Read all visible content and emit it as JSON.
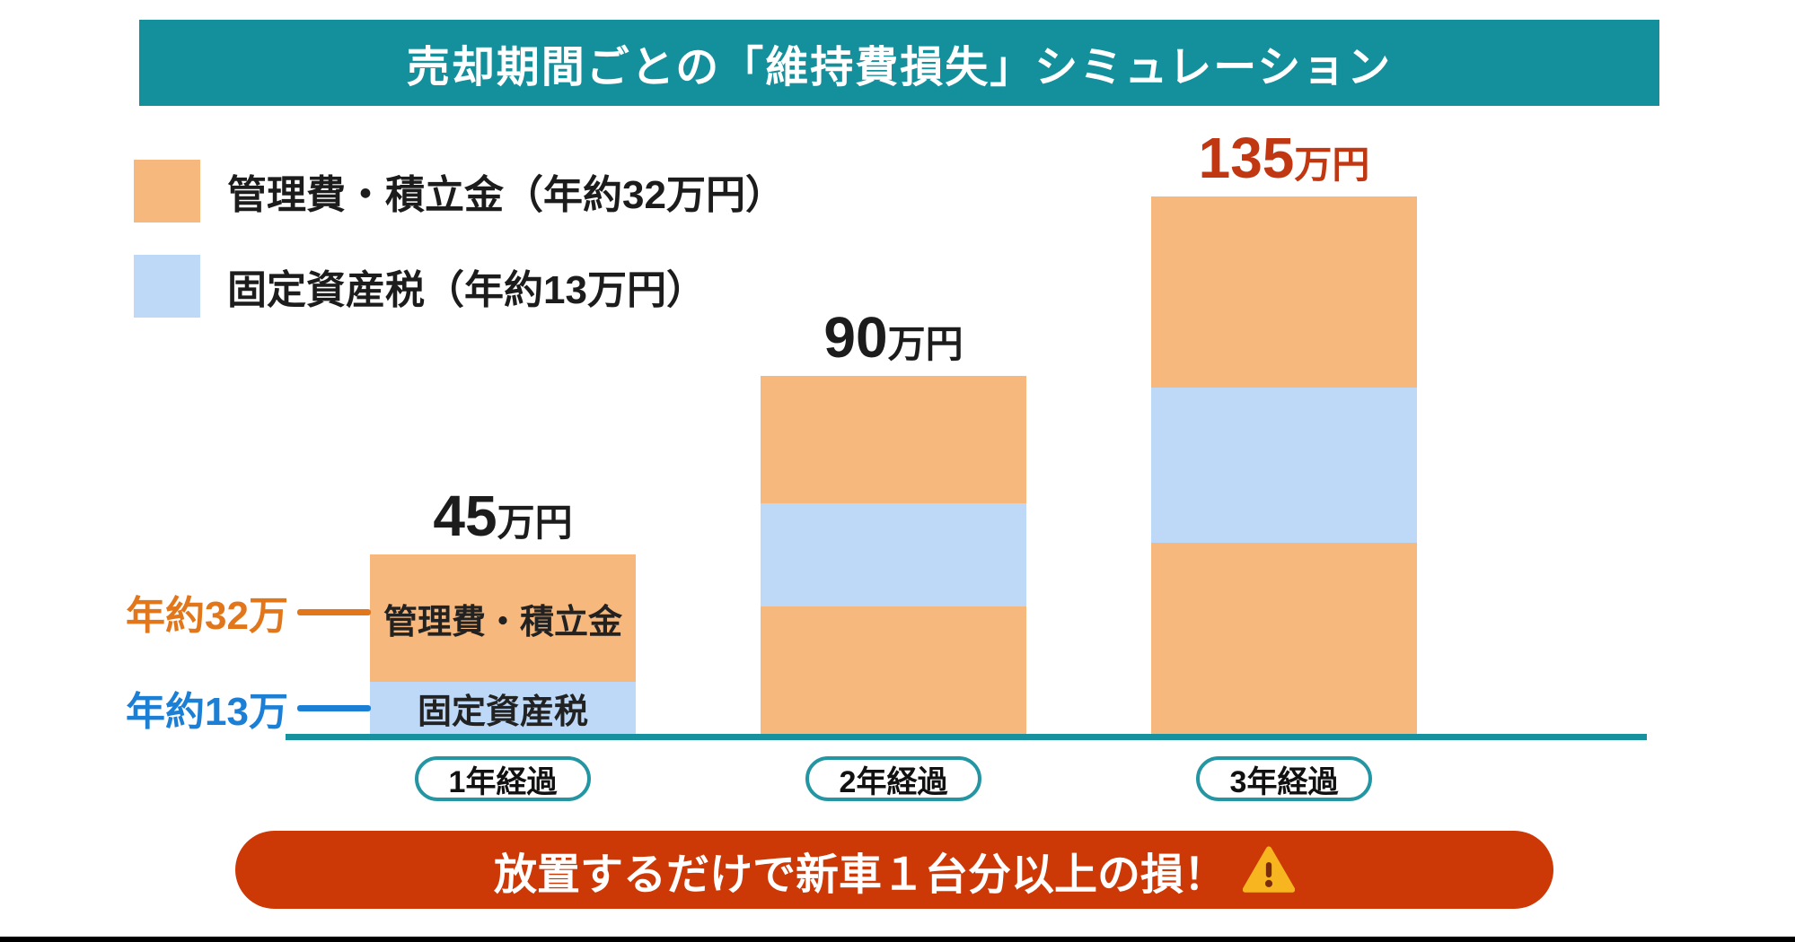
{
  "header": {
    "title": "売却期間ごとの「維持費損失」シミュレーション"
  },
  "legend": {
    "items": [
      {
        "label": "管理費・積立金（年約32万円）",
        "color": "#F6B87D"
      },
      {
        "label": "固定資産税（年約13万円）",
        "color": "#BDD9F7"
      }
    ]
  },
  "chart_data": {
    "type": "bar",
    "stacked": true,
    "unit": "万円",
    "title": "売却期間ごとの「維持費損失」シミュレーション",
    "categories": [
      "1年経過",
      "2年経過",
      "3年経過"
    ],
    "series": [
      {
        "name": "管理費・積立金",
        "annual_label": "年約32万円",
        "color": "#F6B87D",
        "values": [
          32,
          64,
          96
        ]
      },
      {
        "name": "固定資産税",
        "annual_label": "年約13万円",
        "color": "#BDD9F7",
        "values": [
          13,
          26,
          39
        ]
      }
    ],
    "totals": [
      45,
      90,
      135
    ],
    "total_unit": "万円",
    "total_label_colors": [
      "#1C1C1C",
      "#1C1C1C",
      "#C13712"
    ],
    "bars": [
      {
        "category": "1年経過",
        "total": 45,
        "segments": [
          {
            "series": "管理費・積立金",
            "value": 32,
            "label": "管理費・積立金"
          },
          {
            "series": "固定資産税",
            "value": 13,
            "label": "固定資産税"
          }
        ]
      },
      {
        "category": "2年経過",
        "total": 90,
        "segments": [
          {
            "series": "管理費・積立金",
            "value": 32
          },
          {
            "series": "固定資産税",
            "value": 26
          },
          {
            "series": "管理費・積立金",
            "value": 32
          }
        ]
      },
      {
        "category": "3年経過",
        "total": 135,
        "segments": [
          {
            "series": "管理費・積立金",
            "value": 48
          },
          {
            "series": "固定資産税",
            "value": 39
          },
          {
            "series": "管理費・積立金",
            "value": 48
          }
        ]
      }
    ],
    "series_colors": {
      "管理費・積立金": "#F6B87D",
      "固定資産税": "#BDD9F7"
    },
    "axis": {
      "baseline_color": "#17919D",
      "grid": false,
      "legend_position": "top-left"
    }
  },
  "annotations": [
    {
      "text": "年約32万",
      "color": "#E2761B",
      "target_series": "管理費・積立金"
    },
    {
      "text": "年約13万",
      "color": "#1B7FD6",
      "target_series": "固定資産税"
    }
  ],
  "category_pills": {
    "border_color": "#2496A3",
    "text_color": "#111111"
  },
  "banner": {
    "text": "放置するだけで新車１台分以上の損！",
    "bg_color": "#CD3807",
    "icon": "warning-triangle-icon",
    "icon_colors": {
      "triangle": "#F7B61F",
      "exclamation": "#7B2D0B"
    }
  },
  "colors": {
    "header_bg": "#14909D",
    "page_bg": "#FFFFFF",
    "bottom_rule": "#000000",
    "text_dark": "#1C1C1C"
  }
}
